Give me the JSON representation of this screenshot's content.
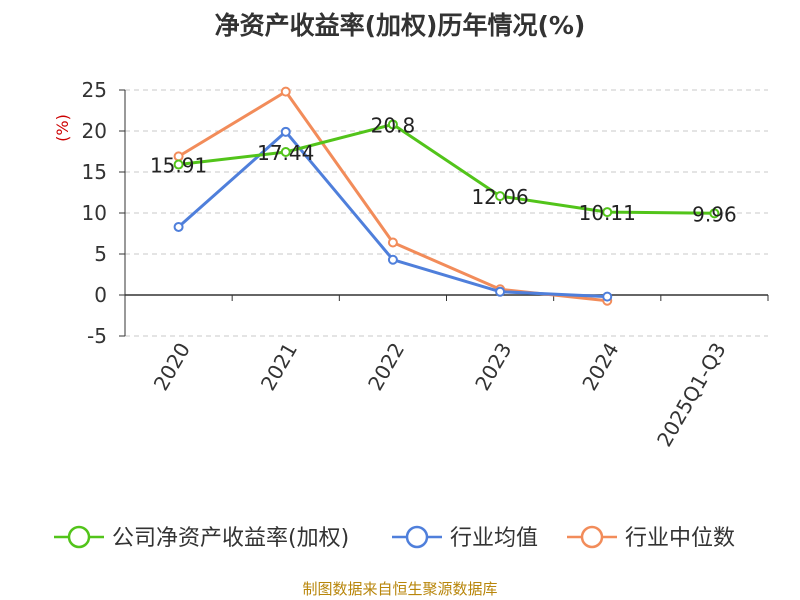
{
  "chart_data": {
    "type": "line",
    "title": "净资产收益率(加权)历年情况(%)",
    "ylabel": "(%)",
    "xlabel": "",
    "categories": [
      "2020",
      "2021",
      "2022",
      "2023",
      "2024",
      "2025Q1-Q3"
    ],
    "ylim": [
      -5,
      25
    ],
    "yticks": [
      -5,
      0,
      5,
      10,
      15,
      20,
      25
    ],
    "grid": true,
    "legend_position": "bottom",
    "series": [
      {
        "name": "公司净资产收益率(加权)",
        "color": "#52c41a",
        "values": [
          15.91,
          17.44,
          20.8,
          12.06,
          10.11,
          9.96
        ],
        "labels": [
          "15.91",
          "17.44",
          "20.8",
          "12.06",
          "10.11",
          "9.96"
        ]
      },
      {
        "name": "行业均值",
        "color": "#4f7fdb",
        "values": [
          8.3,
          19.9,
          4.3,
          0.4,
          -0.2,
          null
        ]
      },
      {
        "name": "行业中位数",
        "color": "#f28c5a",
        "values": [
          16.9,
          24.8,
          6.4,
          0.7,
          -0.7,
          null
        ]
      }
    ]
  },
  "source": "制图数据来自恒生聚源数据库"
}
